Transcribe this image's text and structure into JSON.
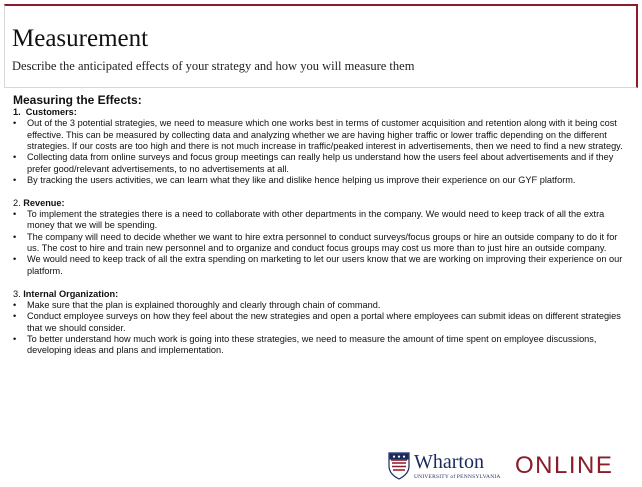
{
  "header": {
    "title": "Measurement",
    "subtitle": "Describe the anticipated effects of your strategy and how you will measure them"
  },
  "body": {
    "heading": "Measuring the Effects:",
    "sections": [
      {
        "number": "1.",
        "label": "Customers:",
        "bullets": [
          "Out of the 3 potential strategies, we need to measure which one works best in terms of customer acquisition and retention along with it being cost effective. This can be measured by collecting data and analyzing whether we are having higher traffic or lower traffic depending on the different strategies. If our costs are too high and there is not much increase in traffic/peaked interest in advertisements, then we need to find a new strategy.",
          "Collecting data from online surveys and focus group meetings can really help us understand how the users feel about advertisements and if they prefer good/relevant advertisements, to no advertisements at all.",
          "By tracking the users activities, we can learn what they like and dislike hence helping us improve their experience on our GYF platform."
        ]
      },
      {
        "number": "2.",
        "label": "Revenue:",
        "bullets": [
          "To implement the strategies there is a need to collaborate with other departments in the company. We would need to keep track of all the extra money that we will be spending.",
          "The company will need to decide whether we want to hire extra personnel to conduct surveys/focus groups or hire an outside company to do it for us. The cost to hire and train new personnel and to organize and conduct focus groups may cost us more than to just hire an outside company.",
          "We would need to keep track of all the extra spending on marketing to let our users know that we are working on improving their experience on our platform."
        ]
      },
      {
        "number": "3.",
        "label": "Internal Organization:",
        "bullets": [
          "Make sure that the plan is explained thoroughly and clearly through chain of command.",
          "Conduct employee surveys on how they feel about the new strategies and open a portal where employees can submit ideas on different strategies that we should consider.",
          "To better understand how much work is going into these strategies, we need to measure the amount of time spent on employee discussions, developing ideas and plans and implementation."
        ]
      }
    ]
  },
  "footer": {
    "logo_wordmark": "Wharton",
    "logo_university": "UNIVERSITY of PENNSYLVANIA",
    "logo_online": "ONLINE"
  },
  "colors": {
    "accent": "#8a1c2b",
    "navy": "#1a2a5e"
  }
}
